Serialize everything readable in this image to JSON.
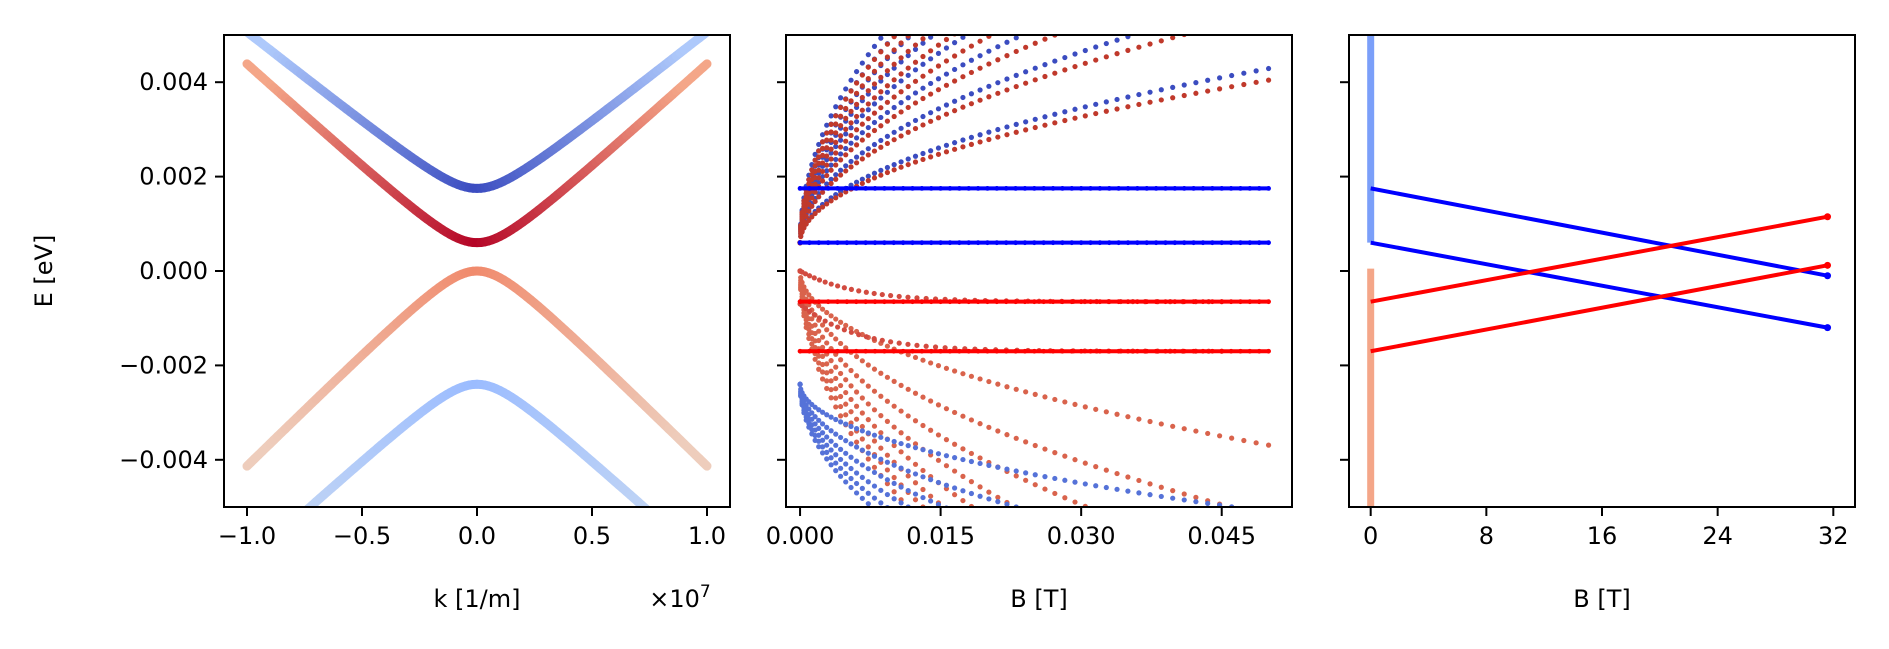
{
  "figure": {
    "ylabel": "E [eV]",
    "ylim": [
      -0.005,
      0.005
    ],
    "yticks": [
      -0.004,
      -0.002,
      0.0,
      0.002,
      0.004
    ],
    "ytick_labels": [
      "−0.004",
      "−0.002",
      "0.000",
      "0.002",
      "0.004"
    ]
  },
  "chart_data": [
    {
      "type": "line",
      "panel": "dispersion",
      "xlabel": "k [1/m]",
      "x_multiplier_label": "×10",
      "x_multiplier_exponent": "7",
      "xlim": [
        -1.1,
        1.1
      ],
      "xticks": [
        -1.0,
        -0.5,
        0.0,
        0.5,
        1.0
      ],
      "xtick_labels": [
        "−1.0",
        "−0.5",
        "0.0",
        "0.5",
        "1.0"
      ],
      "x_unit_scale": 10000000,
      "colormap": "coolwarm",
      "series": [
        {
          "name": "upper conduction band",
          "gap_eV": 0.00175,
          "velocity_eV_per_unit_k": 0.00385,
          "color_center": "#3b4cc0",
          "color_edge": "#aec9fb"
        },
        {
          "name": "lower conduction band",
          "gap_eV": 0.0006,
          "velocity_eV_per_unit_k": 0.0044,
          "color_center": "#b40426",
          "color_edge": "#f4a688"
        },
        {
          "name": "upper valence band",
          "gap_eV": 0.0,
          "velocity_eV_per_unit_k": -0.0048,
          "color_center": "#f08a6c",
          "color_edge": "#eecdbc"
        },
        {
          "name": "lower valence band",
          "gap_eV": -0.0024,
          "velocity_eV_per_unit_k": -0.0044,
          "color_center": "#9bbcff",
          "color_edge": "#c6d8f3"
        }
      ]
    },
    {
      "type": "scatter",
      "panel": "landau-levels-low-field",
      "xlabel": "B [T]",
      "xlim": [
        -0.0015,
        0.0525
      ],
      "xticks": [
        0.0,
        0.015,
        0.03,
        0.045
      ],
      "xtick_labels": [
        "0.000",
        "0.015",
        "0.030",
        "0.045"
      ],
      "flat_levels": [
        {
          "name": "zero-mode blue 1",
          "E": 0.00175,
          "B_range": [
            0.0,
            0.05
          ],
          "color": "#0000ff"
        },
        {
          "name": "zero-mode blue 2",
          "E": 0.0006,
          "B_range": [
            0.0,
            0.05
          ],
          "color": "#0000ff"
        },
        {
          "name": "zero-mode red 1",
          "E": -0.00065,
          "B_range": [
            0.0,
            0.05
          ],
          "color": "#ff0000"
        },
        {
          "name": "zero-mode red 2",
          "E": -0.0017,
          "B_range": [
            0.0,
            0.05
          ],
          "color": "#ff0000"
        }
      ],
      "fans": [
        {
          "name": "conduction fan A",
          "E0": 0.0006,
          "sign": 1,
          "amp": 0.03,
          "levels": [
            1,
            2,
            3,
            4,
            5,
            6,
            7,
            8
          ],
          "color": "#3b4cc0"
        },
        {
          "name": "conduction fan B",
          "E0": 0.0006,
          "sign": 1,
          "amp": 0.028,
          "levels": [
            1,
            2,
            3,
            4,
            5,
            6,
            7,
            8
          ],
          "color": "#c0392b"
        },
        {
          "name": "valence fan A",
          "E0": 0.0,
          "sign": -1,
          "amp": 0.03,
          "levels": [
            1,
            2,
            3,
            4,
            5,
            6,
            7,
            8
          ],
          "color": "#d9634c"
        },
        {
          "name": "valence fan B",
          "E0": -0.0024,
          "sign": -1,
          "amp": 0.022,
          "levels": [
            1,
            2,
            3,
            4,
            5,
            6
          ],
          "color": "#5572d8"
        }
      ],
      "decaying_branches": [
        {
          "name": "upper red branch",
          "E_inf": -0.00065,
          "E_start": 0.0,
          "B_end": 0.045,
          "color": "#d24b40"
        },
        {
          "name": "lower red branch",
          "E_inf": -0.0017,
          "E_start": -0.0007,
          "B_end": 0.045,
          "color": "#d24b40"
        }
      ]
    },
    {
      "type": "line",
      "panel": "landau-levels-high-field",
      "xlabel": "B [T]",
      "xlim": [
        -1.5,
        33.5
      ],
      "xticks": [
        0,
        8,
        16,
        24,
        32
      ],
      "xtick_labels": [
        "0",
        "8",
        "16",
        "24",
        "32"
      ],
      "series": [
        {
          "name": "blue level 1",
          "x": [
            0,
            31.6
          ],
          "y": [
            0.00175,
            -0.0001
          ],
          "color": "#0000ff"
        },
        {
          "name": "blue level 2",
          "x": [
            0,
            31.6
          ],
          "y": [
            0.0006,
            -0.0012
          ],
          "color": "#0000ff"
        },
        {
          "name": "red level 1",
          "x": [
            0,
            31.6
          ],
          "y": [
            -0.00065,
            0.00115
          ],
          "color": "#ff0000"
        },
        {
          "name": "red level 2",
          "x": [
            0,
            31.6
          ],
          "y": [
            -0.0017,
            0.00012
          ],
          "color": "#ff0000"
        }
      ],
      "vertical_bands": [
        {
          "name": "blue vertical band",
          "x": 0,
          "y_range": [
            0.0006,
            0.005
          ],
          "color": "#7b9ff9"
        },
        {
          "name": "orange vertical band",
          "x": 0,
          "y_range": [
            -0.005,
            5e-05
          ],
          "color": "#f4a688"
        }
      ]
    }
  ]
}
